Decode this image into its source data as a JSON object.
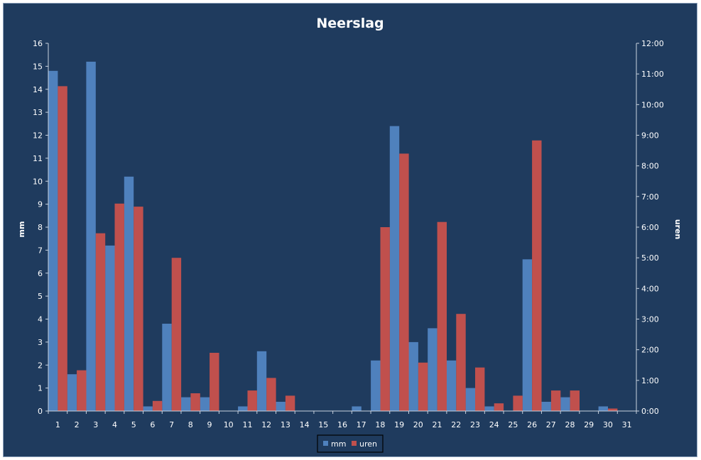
{
  "chart_data": {
    "type": "bar",
    "title": "Neerslag",
    "ylabel": "mm",
    "y2label": "uren",
    "ylim": [
      0,
      16
    ],
    "y2lim_hours": [
      0,
      12
    ],
    "yticks": [
      "0",
      "1",
      "2",
      "3",
      "4",
      "5",
      "6",
      "7",
      "8",
      "9",
      "10",
      "11",
      "12",
      "13",
      "14",
      "15",
      "16"
    ],
    "y2ticks": [
      "0:00",
      "1:00",
      "2:00",
      "3:00",
      "4:00",
      "5:00",
      "6:00",
      "7:00",
      "8:00",
      "9:00",
      "10:00",
      "11:00",
      "12:00"
    ],
    "categories": [
      "1",
      "2",
      "3",
      "4",
      "5",
      "6",
      "7",
      "8",
      "9",
      "10",
      "11",
      "12",
      "13",
      "14",
      "15",
      "16",
      "17",
      "18",
      "19",
      "20",
      "21",
      "22",
      "23",
      "24",
      "25",
      "26",
      "27",
      "28",
      "29",
      "30",
      "31"
    ],
    "series": [
      {
        "name": "mm",
        "axis": "left",
        "color": "#4f81bd",
        "values": [
          14.8,
          1.6,
          15.2,
          7.2,
          10.2,
          0.2,
          3.8,
          0.6,
          0.6,
          0,
          0.2,
          2.6,
          0.4,
          0,
          0,
          0,
          0.2,
          2.2,
          12.4,
          3.0,
          3.6,
          2.2,
          1.0,
          0.2,
          0,
          6.6,
          0.4,
          0.6,
          0,
          0.2,
          0
        ]
      },
      {
        "name": "uren",
        "axis": "right",
        "unit": "hours",
        "color": "#c0504d",
        "values": [
          10.6,
          1.33,
          5.8,
          6.77,
          6.67,
          0.33,
          5.0,
          0.58,
          1.9,
          0,
          0.67,
          1.08,
          0.5,
          0,
          0,
          0,
          0,
          6.0,
          8.4,
          1.58,
          6.17,
          3.17,
          1.42,
          0.25,
          0.5,
          8.83,
          0.67,
          0.67,
          0,
          0.08,
          0
        ]
      }
    ],
    "legend_position": "bottom",
    "grid": false
  }
}
